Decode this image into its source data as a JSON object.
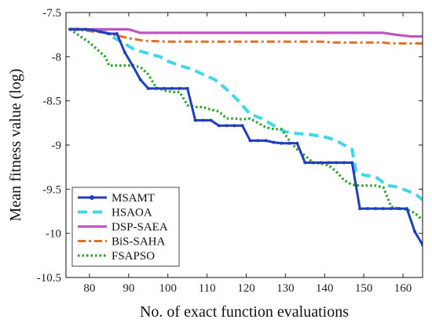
{
  "chart_data": {
    "type": "line",
    "title": "",
    "xlabel": "No. of exact function evaluations",
    "ylabel": "Mean fitness value (log)",
    "xlim": [
      74,
      165
    ],
    "ylim": [
      -10.5,
      -7.5
    ],
    "xticks": [
      80,
      90,
      100,
      110,
      120,
      130,
      140,
      150,
      160
    ],
    "yticks": [
      -7.5,
      -8,
      -8.5,
      -9,
      -9.5,
      -10,
      -10.5
    ],
    "xtick_labels": [
      "80",
      "90",
      "100",
      "110",
      "120",
      "130",
      "140",
      "150",
      "160"
    ],
    "ytick_labels": [
      "-7.5",
      "-8",
      "-8.5",
      "-9",
      "-9.5",
      "-10",
      "-10.5"
    ],
    "grid": false,
    "legend_position": "bottom-left",
    "series": [
      {
        "name": "MSAMT",
        "color": "#1f3fbf",
        "style": "solid-dots",
        "x": [
          75,
          77,
          79,
          81,
          83,
          85,
          87,
          89,
          91,
          93,
          95,
          97,
          99,
          101,
          103,
          105,
          107,
          109,
          111,
          113,
          115,
          117,
          119,
          121,
          123,
          125,
          127,
          129,
          131,
          133,
          135,
          137,
          139,
          141,
          143,
          145,
          147,
          149,
          151,
          153,
          155,
          157,
          159,
          161,
          163,
          165
        ],
        "y": [
          -7.69,
          -7.69,
          -7.69,
          -7.7,
          -7.72,
          -7.74,
          -7.74,
          -7.95,
          -8.1,
          -8.26,
          -8.36,
          -8.36,
          -8.36,
          -8.36,
          -8.36,
          -8.36,
          -8.72,
          -8.72,
          -8.72,
          -8.78,
          -8.78,
          -8.78,
          -8.78,
          -8.95,
          -8.95,
          -8.95,
          -8.97,
          -8.98,
          -8.98,
          -8.98,
          -9.2,
          -9.2,
          -9.2,
          -9.2,
          -9.2,
          -9.2,
          -9.2,
          -9.72,
          -9.72,
          -9.72,
          -9.72,
          -9.72,
          -9.72,
          -9.72,
          -9.98,
          -10.13
        ]
      },
      {
        "name": "HSAOA",
        "color": "#40d8e8",
        "style": "dashed",
        "x": [
          75,
          78,
          81,
          84,
          86,
          88,
          90,
          92,
          94,
          96,
          98,
          100,
          103,
          106,
          109,
          112,
          115,
          118,
          121,
          124,
          127,
          130,
          133,
          136,
          139,
          141,
          143,
          145,
          147,
          148,
          150,
          153,
          156,
          158,
          160,
          163,
          165
        ],
        "y": [
          -7.69,
          -7.69,
          -7.7,
          -7.72,
          -7.78,
          -7.83,
          -7.88,
          -7.93,
          -7.95,
          -7.98,
          -8.0,
          -8.05,
          -8.1,
          -8.14,
          -8.2,
          -8.26,
          -8.37,
          -8.5,
          -8.65,
          -8.7,
          -8.78,
          -8.85,
          -8.87,
          -8.88,
          -8.9,
          -8.92,
          -8.95,
          -9.0,
          -9.05,
          -9.3,
          -9.34,
          -9.36,
          -9.46,
          -9.47,
          -9.5,
          -9.55,
          -9.62
        ]
      },
      {
        "name": "DSP-SAEA",
        "color": "#bf55bf",
        "style": "solid",
        "x": [
          75,
          90,
          93,
          100,
          120,
          140,
          155,
          158,
          162,
          165
        ],
        "y": [
          -7.69,
          -7.69,
          -7.73,
          -7.73,
          -7.73,
          -7.73,
          -7.73,
          -7.75,
          -7.77,
          -7.77
        ]
      },
      {
        "name": "BiS-SAHA",
        "color": "#e07020",
        "style": "dash-dot",
        "x": [
          75,
          80,
          84,
          87,
          90,
          94,
          100,
          110,
          120,
          130,
          140,
          142,
          150,
          155,
          157,
          160,
          165
        ],
        "y": [
          -7.69,
          -7.71,
          -7.73,
          -7.76,
          -7.79,
          -7.82,
          -7.83,
          -7.83,
          -7.83,
          -7.83,
          -7.83,
          -7.84,
          -7.84,
          -7.84,
          -7.85,
          -7.85,
          -7.85
        ]
      },
      {
        "name": "FSAPSO",
        "color": "#2aa52a",
        "style": "dotted",
        "x": [
          75,
          76,
          78,
          80,
          82,
          84,
          85,
          87,
          89,
          91,
          93,
          95,
          97,
          99,
          101,
          103,
          105,
          107,
          109,
          111,
          113,
          115,
          117,
          119,
          121,
          123,
          125,
          127,
          129,
          131,
          133,
          135,
          137,
          139,
          141,
          143,
          145,
          147,
          149,
          151,
          153,
          155,
          157,
          159,
          161,
          163,
          165
        ],
        "y": [
          -7.69,
          -7.72,
          -7.78,
          -7.84,
          -7.92,
          -8.0,
          -8.1,
          -8.1,
          -8.1,
          -8.1,
          -8.12,
          -8.2,
          -8.35,
          -8.38,
          -8.4,
          -8.4,
          -8.55,
          -8.57,
          -8.57,
          -8.6,
          -8.62,
          -8.7,
          -8.7,
          -8.71,
          -8.7,
          -8.75,
          -8.8,
          -8.82,
          -8.82,
          -8.95,
          -9.05,
          -9.12,
          -9.2,
          -9.21,
          -9.23,
          -9.3,
          -9.4,
          -9.45,
          -9.46,
          -9.46,
          -9.46,
          -9.48,
          -9.7,
          -9.72,
          -9.73,
          -9.77,
          -9.85
        ]
      }
    ]
  }
}
